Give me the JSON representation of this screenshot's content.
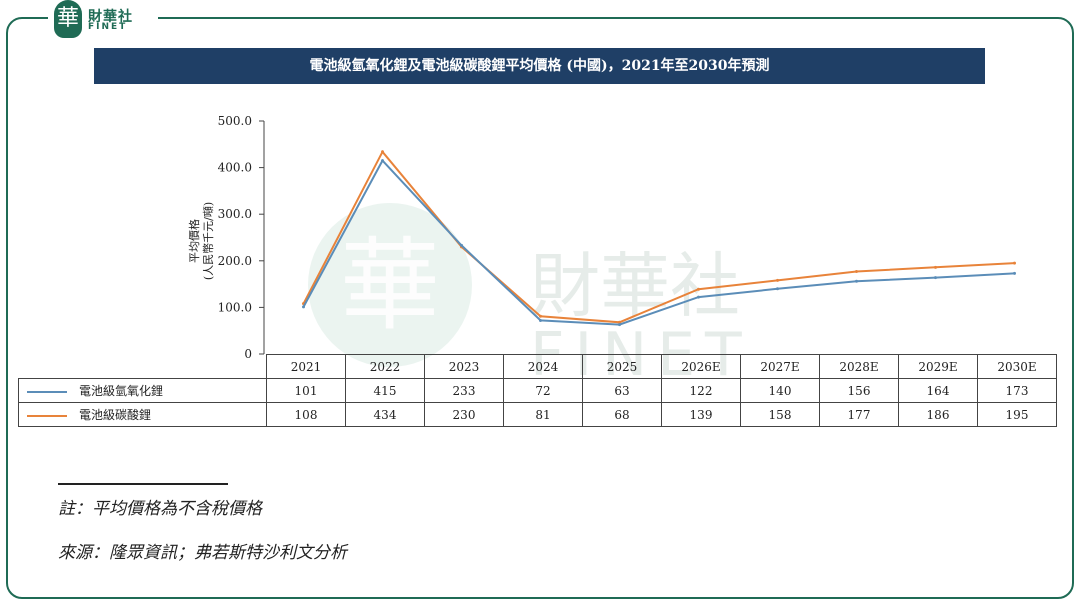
{
  "brand": {
    "glyph": "華",
    "name": "財華社",
    "sub": "FINET",
    "accent_color": "#1f6b55",
    "watermark_text": "財華社",
    "watermark_sub": "FINET"
  },
  "title": "電池級氫氧化鋰及電池級碳酸鋰平均價格 (中國)，2021年至2030年預測",
  "title_bar_color": "#1f3f66",
  "chart_data": {
    "type": "line",
    "categories": [
      "2021",
      "2022",
      "2023",
      "2024",
      "2025",
      "2026E",
      "2027E",
      "2028E",
      "2029E",
      "2030E"
    ],
    "series": [
      {
        "name": "電池級氫氧化鋰",
        "values": [
          101,
          415,
          233,
          72,
          63,
          122,
          140,
          156,
          164,
          173
        ],
        "color": "#5b8db8"
      },
      {
        "name": "電池級碳酸鋰",
        "values": [
          108,
          434,
          230,
          81,
          68,
          139,
          158,
          177,
          186,
          195
        ],
        "color": "#e8833a"
      }
    ],
    "ylabel_line1": "平均價格",
    "ylabel_line2": "(人民幣千元/噸)",
    "ylim": [
      0,
      500
    ],
    "yticks": [
      "0",
      "100.0",
      "200.0",
      "300.0",
      "400.0",
      "500.0"
    ],
    "ytick_values": [
      0,
      100,
      200,
      300,
      400,
      500
    ],
    "grid": false,
    "legend": "data-table-below"
  },
  "footnotes": {
    "note": "註：平均價格為不含稅價格",
    "source": "來源：隆眾資訊；弗若斯特沙利文分析"
  }
}
